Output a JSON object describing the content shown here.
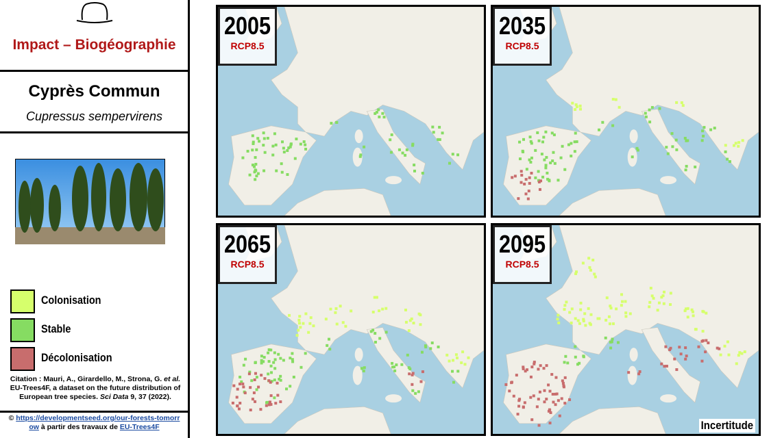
{
  "header": {
    "title": "Impact – Biogéographie"
  },
  "species": {
    "common_name": "Cyprès Commun",
    "latin_name": "Cupressus sempervirens"
  },
  "legend": [
    {
      "label": "Colonisation",
      "color": "#d6ff6c"
    },
    {
      "label": "Stable",
      "color": "#86dc62"
    },
    {
      "label": "Décolonisation",
      "color": "#c86d6d"
    }
  ],
  "citation": [
    "Citation : Mauri, A., Girardello, M., Strona, G. ",
    "et al.",
    " EU-Trees4F, a dataset on the future distribution of European tree species. ",
    "Sci Data",
    " 9, 37 (2022)."
  ],
  "source": {
    "prefix": "©",
    "link": "https://developmentseed.org/our-forests-tomorrow",
    "text": " à partir des travaux de ",
    "link2": "EU-Trees4F"
  },
  "maps": [
    {
      "year": "2005",
      "scenario": "RCP8.5"
    },
    {
      "year": "2035",
      "scenario": "RCP8.5"
    },
    {
      "year": "2065",
      "scenario": "RCP8.5"
    },
    {
      "year": "2095",
      "scenario": "RCP8.5"
    }
  ],
  "note": "Incertitude"
}
